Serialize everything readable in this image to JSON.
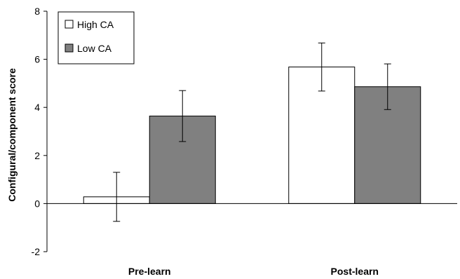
{
  "chart_data": {
    "type": "bar",
    "categories": [
      "Pre-learn",
      "Post-learn"
    ],
    "series": [
      {
        "name": "High CA",
        "values": [
          0.28,
          5.68
        ],
        "error": [
          1.02,
          1.0
        ],
        "color": "#ffffff"
      },
      {
        "name": "Low CA",
        "values": [
          3.64,
          4.86
        ],
        "error": [
          1.06,
          0.95
        ],
        "color": "#808080"
      }
    ],
    "ylabel": "Configural/component score",
    "xlabel": "",
    "title": "",
    "ylim": [
      -2,
      8
    ],
    "yticks": [
      "-2",
      "0",
      "2",
      "4",
      "6",
      "8"
    ],
    "legend": "top-left",
    "grid": false
  }
}
